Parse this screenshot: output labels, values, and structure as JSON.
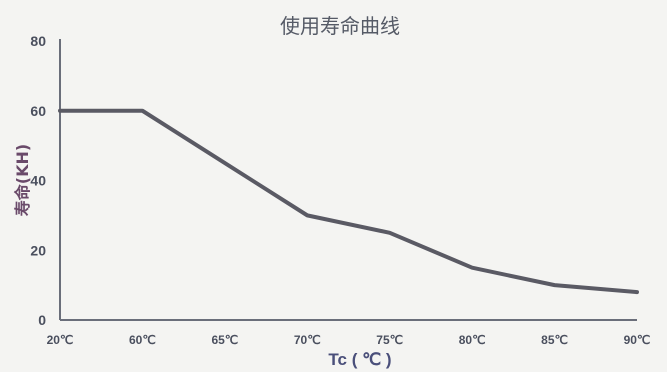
{
  "chart_data": {
    "type": "line",
    "title": "使用寿命曲线",
    "xlabel": "Tc ( ℃ )",
    "ylabel": "寿命(KH)",
    "categories": [
      "20℃",
      "60℃",
      "65℃",
      "70℃",
      "75℃",
      "80℃",
      "85℃",
      "90℃"
    ],
    "series": [
      {
        "values": [
          60,
          60,
          45,
          30,
          25,
          15,
          10,
          8
        ]
      }
    ],
    "ylim": [
      0,
      80
    ],
    "yticks": [
      0,
      20,
      40,
      60,
      80
    ],
    "grid": false,
    "line_color": "#5a5a64",
    "axis_color": "#6a6e7a"
  }
}
